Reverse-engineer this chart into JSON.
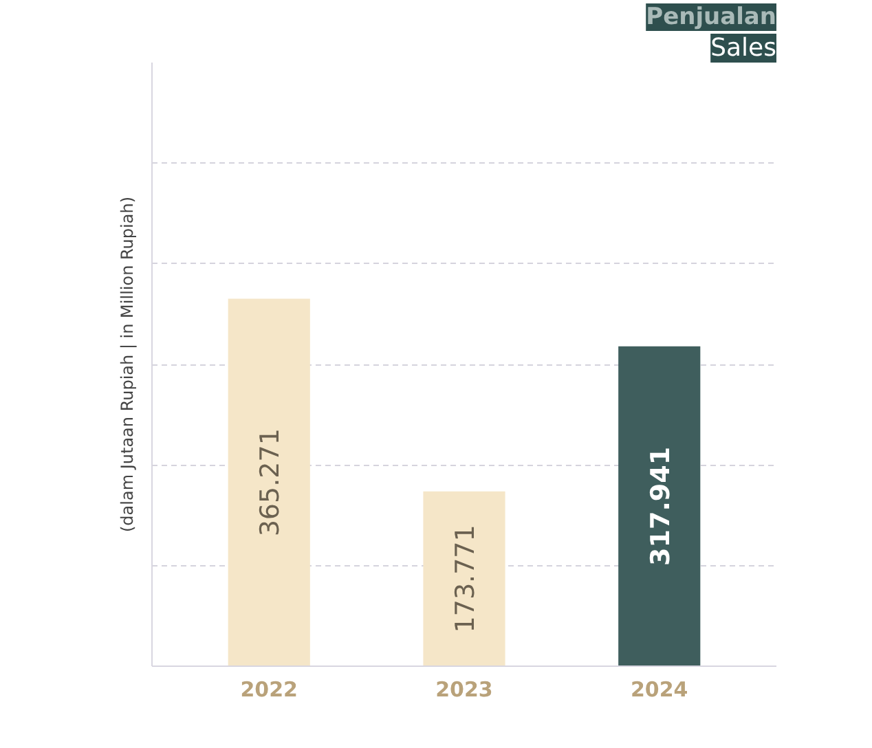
{
  "chart_data": {
    "type": "bar",
    "title": "Penjualan",
    "subtitle": "Sales",
    "ylabel": "(dalam Jutaan Rupiah | in Million Rupiah)",
    "categories": [
      "2022",
      "2023",
      "2024"
    ],
    "values": [
      365271,
      173771,
      317941
    ],
    "value_labels": [
      "365.271",
      "173.771",
      "317.941"
    ],
    "colors": [
      "#f5e6c8",
      "#f5e6c8",
      "#3f5e5d"
    ],
    "ylim": [
      0,
      600000
    ],
    "yticks": [
      {
        "value": 100000,
        "label": null
      },
      {
        "value": 200000,
        "label": null
      },
      {
        "value": 300000,
        "label": null
      },
      {
        "value": 400000,
        "label": null
      },
      {
        "value": 500000,
        "label": null
      }
    ],
    "grid": "y"
  }
}
